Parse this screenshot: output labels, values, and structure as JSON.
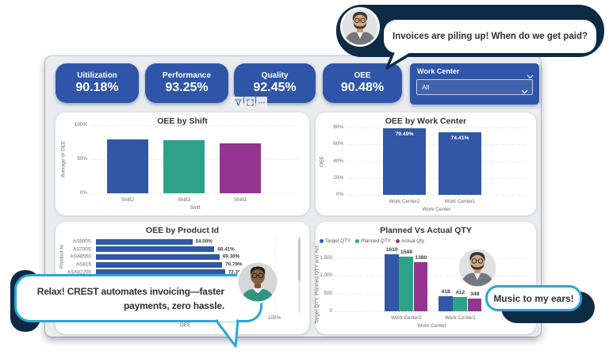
{
  "kpis": [
    {
      "label": "Uitilization",
      "value": "90.18%"
    },
    {
      "label": "Performance",
      "value": "93.25%"
    },
    {
      "label": "Quality",
      "value": "92.45%"
    },
    {
      "label": "OEE",
      "value": "90.48%"
    }
  ],
  "slicer": {
    "title": "Work Center",
    "selected": "All"
  },
  "toolbar_icons": [
    "filter-icon",
    "focus-mode-icon",
    "more-options-icon"
  ],
  "bubbles": {
    "top": {
      "text": "Invoices are piling up! When do we get paid?"
    },
    "bottom_left": {
      "line1": "Relax! CREST automates invoicing—faster",
      "line2": "payments, zero hassle."
    },
    "bottom_right": {
      "text": "Music to my ears!"
    }
  },
  "colors": {
    "kpi_blue": "#2f55a8",
    "bar_blue": "#3157a6",
    "bar_teal": "#2ea189",
    "bar_purple": "#94368f",
    "navy": "#0e2b46",
    "cyan": "#2ba7d6",
    "dashboard_bg": "#e9ebee"
  },
  "chart_data": [
    {
      "id": "shift",
      "type": "bar",
      "title": "OEE by Shift",
      "xlabel": "Shift",
      "ylabel": "Average of OEE",
      "ylim": [
        0,
        100
      ],
      "yticks": [
        {
          "label": "100%",
          "value": 100
        },
        {
          "label": "50%",
          "value": 50
        },
        {
          "label": "0%",
          "value": 0
        }
      ],
      "categories": [
        "Shift2",
        "Shift3",
        "Shift1"
      ],
      "values": [
        79.3,
        77.9,
        73.5
      ],
      "bar_colors": [
        "#3157a6",
        "#2ea189",
        "#94368f"
      ]
    },
    {
      "id": "workcenter",
      "type": "bar",
      "title": "OEE by Work Center",
      "xlabel": "Work Center",
      "ylabel": "OEE",
      "ylim": [
        0,
        80
      ],
      "yticks": [
        {
          "label": "80%",
          "value": 80
        },
        {
          "label": "60%",
          "value": 60
        },
        {
          "label": "40%",
          "value": 40
        },
        {
          "label": "20%",
          "value": 20
        },
        {
          "label": "0%",
          "value": 0
        }
      ],
      "categories": [
        "Work Center2",
        "Work Center1"
      ],
      "values": [
        79.49,
        74.41
      ],
      "value_labels": [
        "79.49%",
        "74.41%"
      ],
      "bar_colors": [
        "#3157a6",
        "#3157a6"
      ]
    },
    {
      "id": "product",
      "type": "bar-horizontal",
      "title": "OEE by Product Id",
      "xlabel": "OEE",
      "ylabel": "Product Id",
      "xlim": [
        0,
        100
      ],
      "xticks": [
        {
          "label": "0%",
          "value": 0
        },
        {
          "label": "100%",
          "value": 100
        }
      ],
      "categories": [
        "AS900S",
        "AS700S",
        "ASA8550",
        "AS816",
        "ASA82200"
      ],
      "values": [
        54.0,
        66.41,
        69.3,
        70.79,
        72.35
      ],
      "value_labels": [
        "54.00%",
        "66.41%",
        "69.30%",
        "70.79%",
        "72.35%"
      ],
      "bar_color": "#3157a6"
    },
    {
      "id": "qty",
      "type": "grouped-bar",
      "title": "Planned Vs Actual QTY",
      "xlabel": "Work Center",
      "ylabel": "Target QTY, Planned QTY and Act...",
      "ylim": [
        0,
        1750
      ],
      "yticks": [
        {
          "label": "1,500",
          "value": 1500
        },
        {
          "label": "1,000",
          "value": 1000
        },
        {
          "label": "500",
          "value": 500
        },
        {
          "label": "0",
          "value": 0
        }
      ],
      "categories": [
        "Work Center2",
        "Work Center1"
      ],
      "series": [
        {
          "name": "Target QTY",
          "color": "#3157a6",
          "values": [
            1610,
            418
          ]
        },
        {
          "name": "Planned QTY",
          "color": "#2ea189",
          "values": [
            1548,
            412
          ]
        },
        {
          "name": "Actual Qty",
          "color": "#94368f",
          "values": [
            1380,
            348
          ]
        }
      ]
    }
  ]
}
